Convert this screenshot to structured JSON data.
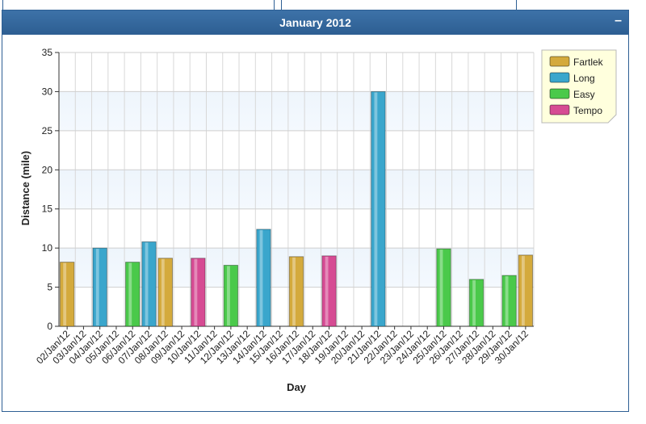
{
  "panel": {
    "title": "January 2012",
    "collapse_label": "–"
  },
  "chart_data": {
    "type": "bar",
    "xlabel": "Day",
    "ylabel": "Distance (mile)",
    "ylim": [
      0,
      35
    ],
    "yticks": [
      0,
      5,
      10,
      15,
      20,
      25,
      30,
      35
    ],
    "grid": true,
    "legend_position": "top-right",
    "categories": [
      "02/Jan/12",
      "03/Jan/12",
      "04/Jan/12",
      "05/Jan/12",
      "06/Jan/12",
      "07/Jan/12",
      "08/Jan/12",
      "09/Jan/12",
      "10/Jan/12",
      "11/Jan/12",
      "12/Jan/12",
      "13/Jan/12",
      "14/Jan/12",
      "15/Jan/12",
      "16/Jan/12",
      "17/Jan/12",
      "18/Jan/12",
      "19/Jan/12",
      "20/Jan/12",
      "21/Jan/12",
      "22/Jan/12",
      "23/Jan/12",
      "24/Jan/12",
      "25/Jan/12",
      "26/Jan/12",
      "27/Jan/12",
      "28/Jan/12",
      "29/Jan/12",
      "30/Jan/12"
    ],
    "series": [
      {
        "name": "Fartlek",
        "color": "#d4aa3c",
        "values": [
          8.2,
          null,
          null,
          null,
          null,
          null,
          8.7,
          null,
          null,
          null,
          null,
          null,
          null,
          null,
          8.9,
          null,
          null,
          null,
          null,
          null,
          null,
          null,
          null,
          null,
          null,
          null,
          null,
          null,
          9.1
        ]
      },
      {
        "name": "Long",
        "color": "#3aa6cc",
        "values": [
          null,
          null,
          10.0,
          null,
          null,
          10.8,
          null,
          null,
          null,
          null,
          null,
          null,
          12.4,
          null,
          null,
          null,
          null,
          null,
          null,
          30.0,
          null,
          null,
          null,
          null,
          null,
          null,
          null,
          null,
          null
        ]
      },
      {
        "name": "Easy",
        "color": "#4ac94a",
        "values": [
          null,
          null,
          null,
          null,
          8.2,
          null,
          null,
          null,
          null,
          null,
          7.8,
          null,
          null,
          null,
          null,
          null,
          null,
          null,
          null,
          null,
          null,
          null,
          null,
          9.9,
          null,
          6.0,
          null,
          6.5,
          null
        ]
      },
      {
        "name": "Tempo",
        "color": "#d64b93",
        "values": [
          null,
          null,
          null,
          null,
          null,
          null,
          null,
          null,
          8.7,
          null,
          null,
          null,
          null,
          null,
          null,
          null,
          9.0,
          null,
          null,
          null,
          null,
          null,
          null,
          null,
          null,
          null,
          null,
          null,
          null
        ]
      }
    ]
  }
}
